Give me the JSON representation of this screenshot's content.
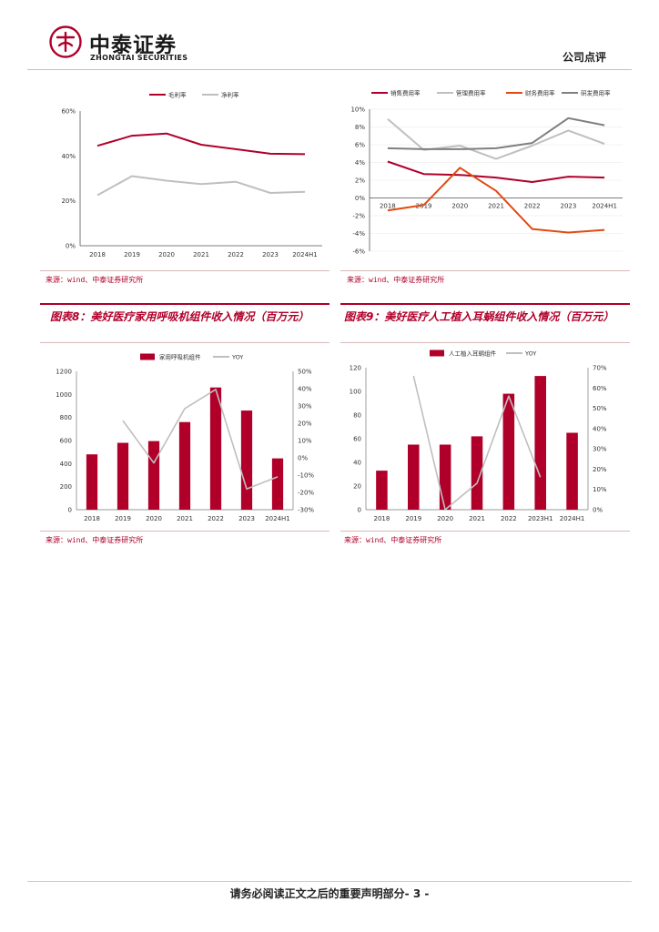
{
  "header": {
    "brand_cn": "中泰证券",
    "brand_en": "ZHONGTAI SECURITIES",
    "doc_type": "公司点评",
    "brand_color": "#b0002a"
  },
  "source_text": "来源：wind、中泰证券研究所",
  "figure8": {
    "title": "图表8：美好医疗家用呼吸机组件收入情况（百万元）"
  },
  "figure9": {
    "title": "图表9：美好医疗人工植入耳蜗组件收入情况（百万元）"
  },
  "footer": {
    "text": "请务必阅读正文之后的重要声明部分",
    "page": "- 3 -"
  },
  "chart_data": [
    {
      "id": "chart1",
      "type": "line",
      "title": "",
      "categories": [
        "2018",
        "2019",
        "2020",
        "2021",
        "2022",
        "2023",
        "2024H1"
      ],
      "series": [
        {
          "name": "毛利率",
          "color": "#b0002a",
          "values": [
            44.5,
            49.0,
            50.0,
            45.0,
            43.0,
            41.0,
            40.8
          ]
        },
        {
          "name": "净利率",
          "color": "#bfbfbf",
          "values": [
            22.5,
            31.0,
            29.0,
            27.5,
            28.5,
            23.5,
            24.0
          ]
        }
      ],
      "ylim": [
        0,
        60
      ],
      "yticks": [
        "0%",
        "20%",
        "40%",
        "60%"
      ],
      "legend": "top"
    },
    {
      "id": "chart2",
      "type": "line",
      "title": "",
      "categories": [
        "2018",
        "2019",
        "2020",
        "2021",
        "2022",
        "2023",
        "2024H1"
      ],
      "series": [
        {
          "name": "销售费用率",
          "color": "#b0002a",
          "values": [
            4.1,
            2.7,
            2.6,
            2.3,
            1.8,
            2.4,
            2.3
          ]
        },
        {
          "name": "管理费用率",
          "color": "#bfbfbf",
          "values": [
            8.9,
            5.4,
            5.9,
            4.4,
            5.9,
            7.6,
            6.1
          ]
        },
        {
          "name": "财务费用率",
          "color": "#e04a12",
          "values": [
            -1.4,
            -0.8,
            3.4,
            0.8,
            -3.5,
            -3.9,
            -3.6
          ]
        },
        {
          "name": "研发费用率",
          "color": "#7f7f7f",
          "values": [
            5.6,
            5.5,
            5.5,
            5.6,
            6.2,
            9.0,
            8.2
          ]
        }
      ],
      "ylim": [
        -6,
        10
      ],
      "yticks": [
        "-6%",
        "-4%",
        "-2%",
        "0%",
        "2%",
        "4%",
        "6%",
        "8%",
        "10%"
      ],
      "legend": "top"
    },
    {
      "id": "chart3",
      "type": "bar",
      "title": "图表8：美好医疗家用呼吸机组件收入情况（百万元）",
      "categories": [
        "2018",
        "2019",
        "2020",
        "2021",
        "2022",
        "2023",
        "2024H1"
      ],
      "series": [
        {
          "name": "家用呼吸机组件",
          "kind": "bar",
          "color": "#b0002a",
          "values": [
            480,
            580,
            595,
            760,
            1060,
            860,
            445
          ]
        },
        {
          "name": "YOY",
          "kind": "line",
          "axis": "right",
          "color": "#bfbfbf",
          "values": [
            null,
            21.5,
            -3,
            28.5,
            39.5,
            -18,
            -11
          ]
        }
      ],
      "ylim": [
        0,
        1200
      ],
      "yticks": [
        "0",
        "200",
        "400",
        "600",
        "800",
        "1000",
        "1200"
      ],
      "y2lim": [
        -30,
        50
      ],
      "y2ticks": [
        "-30%",
        "-20%",
        "-10%",
        "0%",
        "10%",
        "20%",
        "30%",
        "40%",
        "50%"
      ],
      "legend": "top"
    },
    {
      "id": "chart4",
      "type": "bar",
      "title": "图表9：美好医疗人工植入耳蜗组件收入情况（百万元）",
      "categories": [
        "2018",
        "2019",
        "2020",
        "2021",
        "2022",
        "2023H1",
        "2024H1"
      ],
      "series": [
        {
          "name": "人工植入耳蜗组件",
          "kind": "bar",
          "color": "#b0002a",
          "values": [
            33,
            55,
            55,
            62,
            98,
            113,
            65
          ]
        },
        {
          "name": "YOY",
          "kind": "line",
          "axis": "right",
          "color": "#bfbfbf",
          "values": [
            null,
            66,
            0,
            13,
            56,
            16,
            null
          ]
        }
      ],
      "ylim": [
        0,
        120
      ],
      "yticks": [
        "0",
        "20",
        "40",
        "60",
        "80",
        "100",
        "120"
      ],
      "y2lim": [
        0,
        70
      ],
      "y2ticks": [
        "0%",
        "10%",
        "20%",
        "30%",
        "40%",
        "50%",
        "60%",
        "70%"
      ],
      "legend": "top"
    }
  ]
}
